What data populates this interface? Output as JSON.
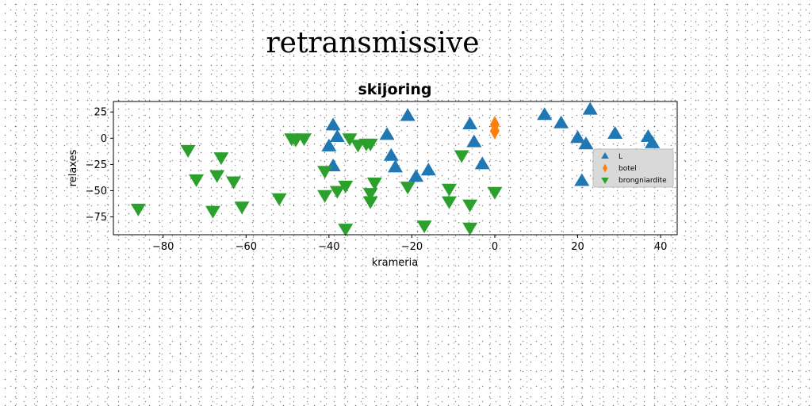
{
  "figure": {
    "suptitle": "retransmissive"
  },
  "chart_data": {
    "type": "scatter",
    "title": "skijoring",
    "xlabel": "krameria",
    "ylabel": "relaxes",
    "xlim": [
      -92,
      44
    ],
    "ylim": [
      -92,
      35
    ],
    "xticks": [
      -80,
      -60,
      -40,
      -20,
      0,
      20,
      40
    ],
    "yticks": [
      25,
      0,
      -25,
      -50,
      -75
    ],
    "xtick_labels": [
      "−80",
      "−60",
      "−40",
      "−20",
      "0",
      "20",
      "40"
    ],
    "ytick_labels": [
      "25",
      "0",
      "−25",
      "−50",
      "−75"
    ],
    "grid": false,
    "legend_position": "right",
    "series": [
      {
        "name": "L",
        "marker": "triangle-up",
        "color": "#1f77b4",
        "points": [
          [
            -39,
            12
          ],
          [
            -38,
            1
          ],
          [
            -40,
            -8
          ],
          [
            -39,
            -27
          ],
          [
            -26,
            3
          ],
          [
            -21,
            21
          ],
          [
            -25,
            -17
          ],
          [
            -24,
            -28
          ],
          [
            -19,
            -37
          ],
          [
            -16,
            -31
          ],
          [
            -6,
            13
          ],
          [
            -5,
            -4
          ],
          [
            -3,
            -25
          ],
          [
            12,
            22
          ],
          [
            16,
            14
          ],
          [
            23,
            27
          ],
          [
            20,
            0
          ],
          [
            22,
            -6
          ],
          [
            21,
            -41
          ],
          [
            29,
            4
          ],
          [
            32,
            -26
          ],
          [
            37,
            1
          ],
          [
            38,
            -5
          ]
        ]
      },
      {
        "name": "botel",
        "marker": "diamond",
        "color": "#ff7f0e",
        "points": [
          [
            0,
            13
          ],
          [
            0,
            7
          ]
        ]
      },
      {
        "name": "brongniardite",
        "marker": "triangle-down",
        "color": "#2ca02c",
        "points": [
          [
            -86,
            -67
          ],
          [
            -74,
            -11
          ],
          [
            -72,
            -39
          ],
          [
            -68,
            -69
          ],
          [
            -67,
            -35
          ],
          [
            -66,
            -18
          ],
          [
            -63,
            -41
          ],
          [
            -61,
            -65
          ],
          [
            -52,
            -57
          ],
          [
            -49,
            0
          ],
          [
            -48,
            -1
          ],
          [
            -46,
            0
          ],
          [
            -41,
            -31
          ],
          [
            -41,
            -54
          ],
          [
            -38,
            -50
          ],
          [
            -36,
            -86
          ],
          [
            -36,
            -45
          ],
          [
            -35,
            0
          ],
          [
            -33,
            -6
          ],
          [
            -31,
            -5
          ],
          [
            -30,
            -5
          ],
          [
            -30,
            -52
          ],
          [
            -30,
            -60
          ],
          [
            -29,
            -42
          ],
          [
            -21,
            -46
          ],
          [
            -17,
            -83
          ],
          [
            -11,
            -48
          ],
          [
            -11,
            -60
          ],
          [
            -8,
            -16
          ],
          [
            -6,
            -63
          ],
          [
            -6,
            -85
          ],
          [
            0,
            -51
          ]
        ]
      }
    ]
  }
}
